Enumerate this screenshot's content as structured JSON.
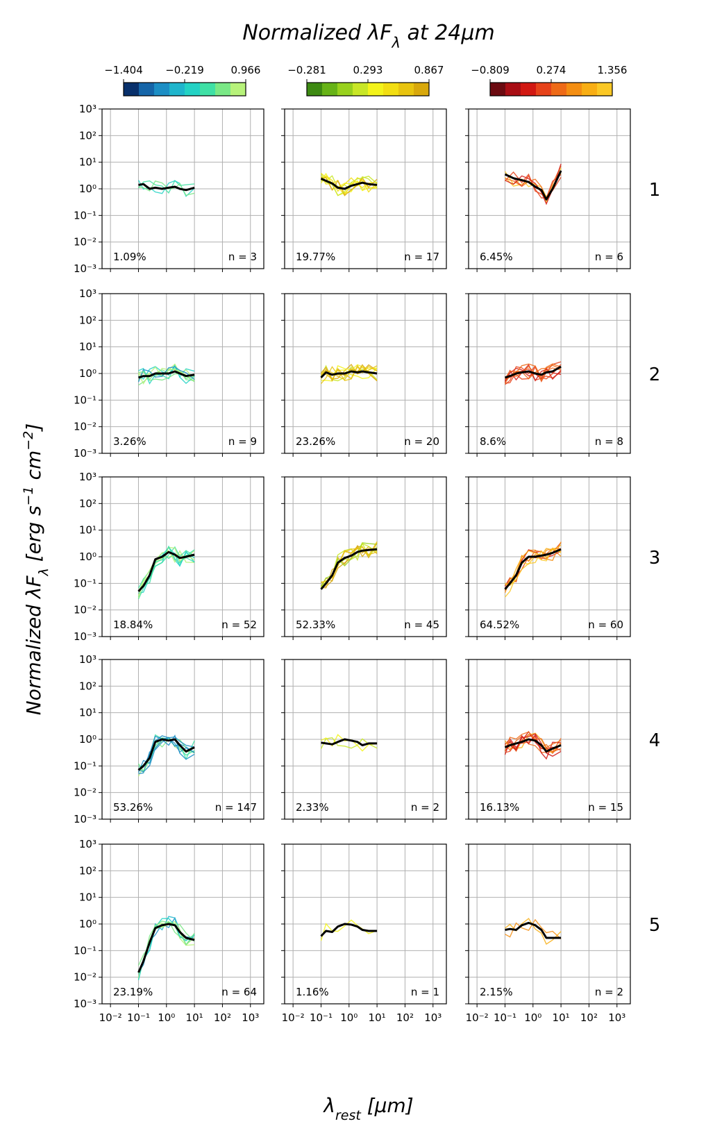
{
  "chart_data": {
    "type": "line",
    "title": "Normalized λF_λ at 24μm",
    "xlabel": "λ_rest [μm]",
    "ylabel": "Normalized λF_λ [erg s^-1 cm^-2]",
    "xscale": "log",
    "yscale": "log",
    "xlim": [
      0.005,
      3000
    ],
    "ylim": [
      0.001,
      1000
    ],
    "x_tick_labels": [
      "10⁻²",
      "10⁻¹",
      "10⁰",
      "10¹",
      "10²",
      "10³"
    ],
    "y_tick_labels": [
      "10⁻³",
      "10⁻²",
      "10⁻¹",
      "10⁰",
      "10¹",
      "10²",
      "10³"
    ],
    "grid": true,
    "colorbars": [
      {
        "ticks": [
          "−1.404",
          "−0.219",
          "0.966"
        ],
        "colors": [
          "#08306b",
          "#1565a8",
          "#1c8ec4",
          "#1fb5cc",
          "#23d2c4",
          "#3fe0a5",
          "#7ae886",
          "#b7f27a"
        ]
      },
      {
        "ticks": [
          "−0.281",
          "0.293",
          "0.867"
        ],
        "colors": [
          "#3d8a12",
          "#67b317",
          "#98d11d",
          "#c8e626",
          "#f3f31a",
          "#f2de12",
          "#e8c40f",
          "#d8a80c"
        ]
      },
      {
        "ticks": [
          "−0.809",
          "0.274",
          "1.356"
        ],
        "colors": [
          "#6b0a10",
          "#a80d14",
          "#d11812",
          "#e6421a",
          "#ee6a17",
          "#f48e12",
          "#f8ae14",
          "#fbc825"
        ]
      }
    ],
    "row_labels": [
      "1",
      "2",
      "3",
      "4",
      "5"
    ],
    "panels": [
      [
        {
          "pct": "1.09%",
          "n": "n = 3",
          "median": {
            "x": [
              0.1,
              0.15,
              0.25,
              0.4,
              0.7,
              1.2,
              2,
              3,
              5,
              10
            ],
            "y": [
              1.4,
              1.5,
              1.0,
              1.1,
              1.0,
              1.1,
              1.2,
              1.0,
              0.9,
              1.1
            ]
          }
        },
        {
          "pct": "19.77%",
          "n": "n = 17",
          "median": {
            "x": [
              0.1,
              0.15,
              0.25,
              0.4,
              0.7,
              1.2,
              2,
              3,
              5,
              10
            ],
            "y": [
              2.4,
              2.0,
              1.6,
              1.1,
              1.0,
              1.3,
              1.5,
              1.7,
              1.5,
              1.4
            ]
          }
        },
        {
          "pct": "6.45%",
          "n": "n = 6",
          "median": {
            "x": [
              0.1,
              0.2,
              0.4,
              0.7,
              1.2,
              2,
              3,
              5,
              10
            ],
            "y": [
              3.5,
              2.5,
              2.1,
              1.8,
              1.2,
              0.9,
              0.4,
              1.0,
              4.8
            ]
          }
        }
      ],
      [
        {
          "pct": "3.26%",
          "n": "n = 9",
          "median": {
            "x": [
              0.1,
              0.15,
              0.25,
              0.4,
              0.7,
              1.2,
              2,
              3,
              5,
              10
            ],
            "y": [
              0.7,
              0.8,
              0.8,
              1.0,
              1.0,
              1.0,
              1.2,
              1.0,
              0.8,
              0.9
            ]
          }
        },
        {
          "pct": "23.26%",
          "n": "n = 20",
          "median": {
            "x": [
              0.1,
              0.15,
              0.25,
              0.4,
              0.7,
              1.2,
              2,
              3,
              5,
              10
            ],
            "y": [
              0.7,
              1.1,
              0.9,
              1.0,
              1.0,
              1.2,
              1.1,
              1.2,
              1.1,
              1.0
            ]
          }
        },
        {
          "pct": "8.6%",
          "n": "n = 8",
          "median": {
            "x": [
              0.1,
              0.15,
              0.25,
              0.4,
              0.7,
              1.2,
              2,
              3,
              5,
              10
            ],
            "y": [
              0.7,
              0.8,
              1.0,
              1.1,
              1.2,
              1.0,
              0.9,
              1.1,
              1.2,
              1.8
            ]
          }
        }
      ],
      [
        {
          "pct": "18.84%",
          "n": "n = 52",
          "median": {
            "x": [
              0.1,
              0.15,
              0.25,
              0.4,
              0.7,
              1.2,
              2,
              3,
              5,
              10
            ],
            "y": [
              0.05,
              0.08,
              0.2,
              0.8,
              1.0,
              1.5,
              1.2,
              0.9,
              1.0,
              1.2
            ]
          }
        },
        {
          "pct": "52.33%",
          "n": "n = 45",
          "median": {
            "x": [
              0.1,
              0.15,
              0.25,
              0.4,
              0.7,
              1.2,
              2,
              3,
              5,
              10
            ],
            "y": [
              0.06,
              0.1,
              0.2,
              0.6,
              0.9,
              1.1,
              1.5,
              1.7,
              1.8,
              1.9
            ]
          }
        },
        {
          "pct": "64.52%",
          "n": "n = 60",
          "median": {
            "x": [
              0.1,
              0.15,
              0.25,
              0.4,
              0.7,
              1.2,
              2,
              3,
              5,
              10
            ],
            "y": [
              0.06,
              0.1,
              0.2,
              0.6,
              1.0,
              1.0,
              1.1,
              1.2,
              1.4,
              1.9
            ]
          }
        }
      ],
      [
        {
          "pct": "53.26%",
          "n": "n = 147",
          "median": {
            "x": [
              0.1,
              0.15,
              0.25,
              0.4,
              0.7,
              1.2,
              2,
              3,
              5,
              10
            ],
            "y": [
              0.07,
              0.1,
              0.2,
              0.8,
              1.0,
              0.9,
              1.0,
              0.6,
              0.35,
              0.5
            ]
          }
        },
        {
          "pct": "2.33%",
          "n": "n = 2",
          "median": {
            "x": [
              0.1,
              0.15,
              0.25,
              0.4,
              0.7,
              1.2,
              2,
              3,
              5,
              10
            ],
            "y": [
              0.75,
              0.7,
              0.65,
              0.8,
              1.0,
              0.9,
              0.8,
              0.6,
              0.7,
              0.7
            ]
          }
        },
        {
          "pct": "16.13%",
          "n": "n = 15",
          "median": {
            "x": [
              0.1,
              0.15,
              0.25,
              0.4,
              0.7,
              1.2,
              2,
              3,
              5,
              10
            ],
            "y": [
              0.5,
              0.6,
              0.7,
              0.8,
              1.0,
              0.9,
              0.6,
              0.35,
              0.45,
              0.6
            ]
          }
        }
      ],
      [
        {
          "pct": "23.19%",
          "n": "n = 64",
          "median": {
            "x": [
              0.1,
              0.15,
              0.25,
              0.4,
              0.7,
              1.2,
              2,
              3,
              5,
              10
            ],
            "y": [
              0.015,
              0.04,
              0.2,
              0.7,
              0.9,
              1.0,
              0.9,
              0.5,
              0.3,
              0.25
            ]
          }
        },
        {
          "pct": "1.16%",
          "n": "n = 1",
          "median": {
            "x": [
              0.1,
              0.15,
              0.25,
              0.4,
              0.7,
              1.2,
              2,
              3,
              5,
              10
            ],
            "y": [
              0.35,
              0.55,
              0.5,
              0.8,
              1.0,
              0.95,
              0.8,
              0.6,
              0.55,
              0.55
            ]
          }
        },
        {
          "pct": "2.15%",
          "n": "n = 2",
          "median": {
            "x": [
              0.1,
              0.15,
              0.25,
              0.4,
              0.7,
              1.2,
              2,
              3,
              5,
              10
            ],
            "y": [
              0.6,
              0.65,
              0.6,
              0.9,
              1.1,
              0.9,
              0.6,
              0.3,
              0.3,
              0.3
            ]
          }
        }
      ]
    ]
  }
}
